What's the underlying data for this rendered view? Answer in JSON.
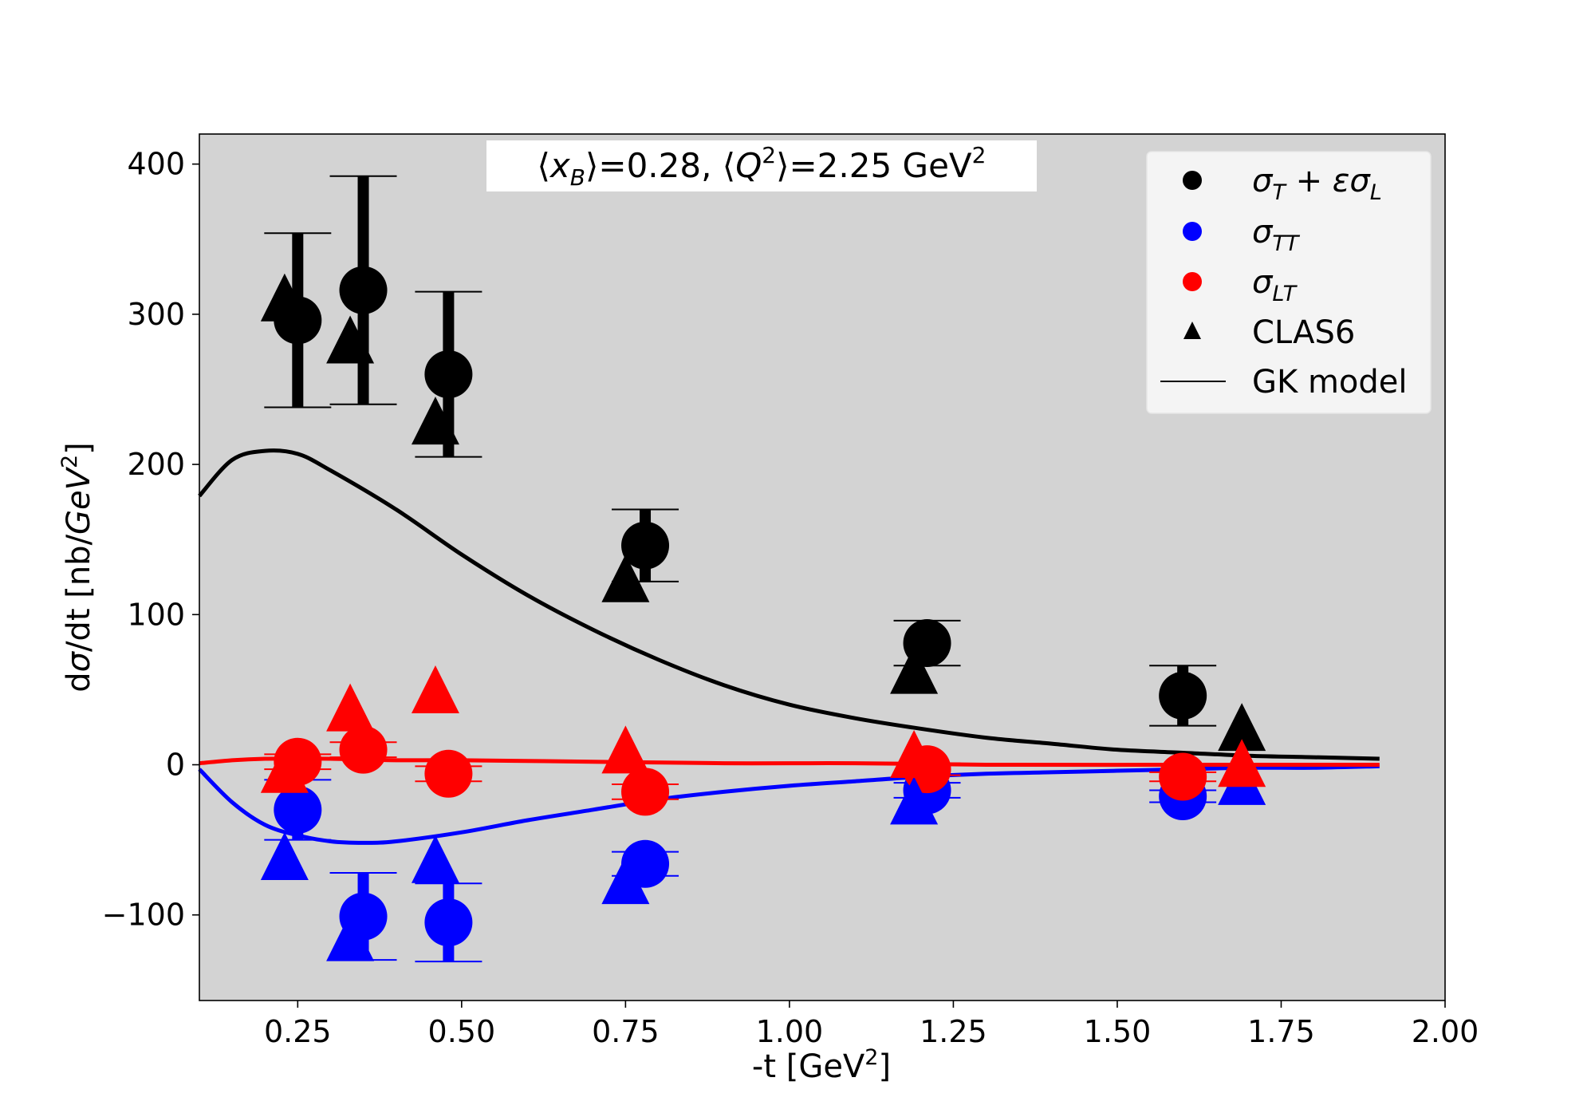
{
  "chart_data": {
    "type": "scatter",
    "title": "⟨x_B⟩=0.28, ⟨Q²⟩=2.25 GeV²",
    "title_parts": {
      "x_open": "⟨",
      "x_var": "x",
      "x_sub": "B",
      "x_close": "⟩=0.28, ⟨",
      "q_var": "Q",
      "q_sup": "2",
      "q_close": "⟩=2.25 GeV",
      "q_unit_sup": "2"
    },
    "xlabel": "-t [GeV²]",
    "xlabel_parts": {
      "main": "-t [GeV",
      "sup": "2",
      "end": "]"
    },
    "ylabel": "dσ/dt [nb/GeV²]",
    "ylabel_parts": {
      "a": "d",
      "sigma": "σ",
      "b": "/dt [nb/",
      "unit": "GeV",
      "sup": "2",
      "end": "]"
    },
    "xlim": [
      0.1,
      2.0
    ],
    "ylim": [
      -157,
      420
    ],
    "xticks": [
      0.25,
      0.5,
      0.75,
      1.0,
      1.25,
      1.5,
      1.75,
      2.0
    ],
    "xtick_labels": [
      "0.25",
      "0.50",
      "0.75",
      "1.00",
      "1.25",
      "1.50",
      "1.75",
      "2.00"
    ],
    "yticks": [
      -100,
      0,
      100,
      200,
      300,
      400
    ],
    "ytick_labels": [
      "−100",
      "0",
      "100",
      "200",
      "300",
      "400"
    ],
    "grid": false,
    "background_color": "#d3d3d3",
    "legend_position": "top-right",
    "legend": [
      {
        "marker": "circle",
        "color": "#000000",
        "label": "σ_T + εσ_L",
        "main": "σ",
        "sub": "T",
        "rest": " + εσ",
        "sub2": "L"
      },
      {
        "marker": "circle",
        "color": "#0000ff",
        "label": "σ_TT",
        "main": "σ",
        "sub": "TT"
      },
      {
        "marker": "circle",
        "color": "#ff0000",
        "label": "σ_LT",
        "main": "σ",
        "sub": "LT"
      },
      {
        "marker": "triangle",
        "color": "#000000",
        "label": "CLAS6",
        "main": "CLAS6"
      },
      {
        "marker": "line",
        "color": "#000000",
        "label": "GK model",
        "main": "GK model"
      }
    ],
    "series": [
      {
        "name": "σ_T + εσ_L",
        "marker": "circle",
        "color": "#000000",
        "points": [
          {
            "x": 0.25,
            "y": 296,
            "err": 58
          },
          {
            "x": 0.35,
            "y": 316,
            "err": 76
          },
          {
            "x": 0.48,
            "y": 260,
            "err": 55
          },
          {
            "x": 0.78,
            "y": 146,
            "err": 24
          },
          {
            "x": 1.21,
            "y": 81,
            "err": 15
          },
          {
            "x": 1.6,
            "y": 46,
            "err": 20
          }
        ]
      },
      {
        "name": "σ_TT",
        "marker": "circle",
        "color": "#0000ff",
        "points": [
          {
            "x": 0.25,
            "y": -30,
            "err": 20
          },
          {
            "x": 0.35,
            "y": -101,
            "err": 29
          },
          {
            "x": 0.48,
            "y": -105,
            "err": 26
          },
          {
            "x": 0.78,
            "y": -66,
            "err": 8
          },
          {
            "x": 1.21,
            "y": -17,
            "err": 5
          },
          {
            "x": 1.6,
            "y": -21,
            "err": 4
          }
        ]
      },
      {
        "name": "σ_LT",
        "marker": "circle",
        "color": "#ff0000",
        "points": [
          {
            "x": 0.25,
            "y": 2,
            "err": 5
          },
          {
            "x": 0.35,
            "y": 10,
            "err": 5
          },
          {
            "x": 0.48,
            "y": -6,
            "err": 5
          },
          {
            "x": 0.78,
            "y": -18,
            "err": 5
          },
          {
            "x": 1.21,
            "y": -3,
            "err": 4
          },
          {
            "x": 1.6,
            "y": -8,
            "err": 3
          }
        ]
      },
      {
        "name": "CLAS6",
        "marker": "triangle",
        "color": "#000000",
        "points": [
          {
            "x": 0.23,
            "y": 308
          },
          {
            "x": 0.33,
            "y": 280
          },
          {
            "x": 0.46,
            "y": 226
          },
          {
            "x": 0.75,
            "y": 121
          },
          {
            "x": 1.19,
            "y": 60
          },
          {
            "x": 1.69,
            "y": 22
          }
        ]
      },
      {
        "name": "CLAS6",
        "marker": "triangle",
        "color": "#0000ff",
        "points": [
          {
            "x": 0.23,
            "y": -64
          },
          {
            "x": 0.33,
            "y": -118
          },
          {
            "x": 0.46,
            "y": -66
          },
          {
            "x": 0.75,
            "y": -80
          },
          {
            "x": 1.19,
            "y": -27
          },
          {
            "x": 1.69,
            "y": -14
          }
        ]
      },
      {
        "name": "CLAS6",
        "marker": "triangle",
        "color": "#ff0000",
        "points": [
          {
            "x": 0.23,
            "y": -6
          },
          {
            "x": 0.33,
            "y": 35
          },
          {
            "x": 0.46,
            "y": 47
          },
          {
            "x": 0.75,
            "y": 7
          },
          {
            "x": 1.19,
            "y": 4
          },
          {
            "x": 1.69,
            "y": -2
          }
        ]
      },
      {
        "name": "GK model",
        "marker": "line",
        "color": "#000000",
        "points": [
          {
            "x": 0.1,
            "y": 179
          },
          {
            "x": 0.15,
            "y": 203
          },
          {
            "x": 0.2,
            "y": 209
          },
          {
            "x": 0.25,
            "y": 207
          },
          {
            "x": 0.3,
            "y": 196
          },
          {
            "x": 0.4,
            "y": 170
          },
          {
            "x": 0.5,
            "y": 140
          },
          {
            "x": 0.6,
            "y": 113
          },
          {
            "x": 0.7,
            "y": 90
          },
          {
            "x": 0.8,
            "y": 70
          },
          {
            "x": 0.9,
            "y": 53
          },
          {
            "x": 1.0,
            "y": 40
          },
          {
            "x": 1.1,
            "y": 31
          },
          {
            "x": 1.2,
            "y": 24
          },
          {
            "x": 1.3,
            "y": 18
          },
          {
            "x": 1.4,
            "y": 14
          },
          {
            "x": 1.5,
            "y": 10
          },
          {
            "x": 1.6,
            "y": 8
          },
          {
            "x": 1.7,
            "y": 6
          },
          {
            "x": 1.8,
            "y": 5
          },
          {
            "x": 1.9,
            "y": 4
          }
        ]
      },
      {
        "name": "GK model",
        "marker": "line",
        "color": "#0000ff",
        "points": [
          {
            "x": 0.1,
            "y": -3
          },
          {
            "x": 0.15,
            "y": -25
          },
          {
            "x": 0.2,
            "y": -40
          },
          {
            "x": 0.25,
            "y": -47
          },
          {
            "x": 0.3,
            "y": -51
          },
          {
            "x": 0.35,
            "y": -52
          },
          {
            "x": 0.4,
            "y": -51
          },
          {
            "x": 0.5,
            "y": -45
          },
          {
            "x": 0.6,
            "y": -37
          },
          {
            "x": 0.7,
            "y": -30
          },
          {
            "x": 0.8,
            "y": -23
          },
          {
            "x": 0.9,
            "y": -18
          },
          {
            "x": 1.0,
            "y": -14
          },
          {
            "x": 1.1,
            "y": -11
          },
          {
            "x": 1.2,
            "y": -8
          },
          {
            "x": 1.3,
            "y": -6
          },
          {
            "x": 1.4,
            "y": -5
          },
          {
            "x": 1.5,
            "y": -4
          },
          {
            "x": 1.6,
            "y": -3
          },
          {
            "x": 1.7,
            "y": -2
          },
          {
            "x": 1.8,
            "y": -2
          },
          {
            "x": 1.9,
            "y": -1
          }
        ]
      },
      {
        "name": "GK model",
        "marker": "line",
        "color": "#ff0000",
        "points": [
          {
            "x": 0.1,
            "y": 1
          },
          {
            "x": 0.15,
            "y": 3
          },
          {
            "x": 0.2,
            "y": 4
          },
          {
            "x": 0.25,
            "y": 4
          },
          {
            "x": 0.3,
            "y": 4
          },
          {
            "x": 0.4,
            "y": 3
          },
          {
            "x": 0.5,
            "y": 3
          },
          {
            "x": 0.7,
            "y": 2
          },
          {
            "x": 0.9,
            "y": 1
          },
          {
            "x": 1.1,
            "y": 1
          },
          {
            "x": 1.3,
            "y": 0
          },
          {
            "x": 1.6,
            "y": 0
          },
          {
            "x": 1.9,
            "y": 0
          }
        ]
      }
    ]
  }
}
